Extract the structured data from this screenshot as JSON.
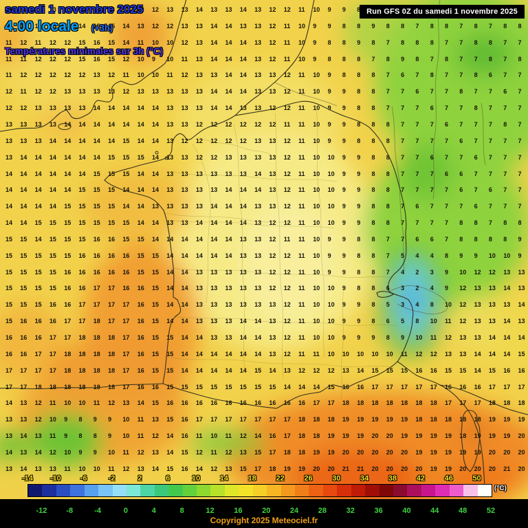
{
  "header": {
    "date_line": "samedi 1 novembre 2025",
    "time_line": "4:00 locale",
    "time_offset": "(+3h)",
    "subtitle": "Températures minimales sur 3h (°C)"
  },
  "run_box": {
    "label": "Run GFS 0Z du samedi 1 novembre 2025"
  },
  "copyright": "Copyright 2025 Meteociel.fr",
  "colorbar": {
    "unit_label": "(°C)",
    "top_labels": [
      "-14",
      "-10",
      "-6",
      "-2",
      "2",
      "6",
      "10",
      "14",
      "18",
      "22",
      "26",
      "30",
      "34",
      "38",
      "42",
      "46",
      "50"
    ],
    "bottom_labels": [
      "-12",
      "-8",
      "-4",
      "0",
      "4",
      "8",
      "12",
      "16",
      "20",
      "24",
      "28",
      "32",
      "36",
      "40",
      "44",
      "48",
      "52"
    ],
    "colors": [
      "#10186e",
      "#1c2f9c",
      "#2a4ec2",
      "#3e72dc",
      "#57a0ee",
      "#78c5f6",
      "#95dff9",
      "#7ce8d6",
      "#4ed5a6",
      "#3bc87c",
      "#43c84e",
      "#62d13b",
      "#8dd930",
      "#b7e12a",
      "#dee829",
      "#f4e229",
      "#f6cf27",
      "#f6b723",
      "#f4991d",
      "#f17f19",
      "#ed6213",
      "#e7490f",
      "#d82f0b",
      "#bf1b07",
      "#9f0f07",
      "#7f0707",
      "#8b0a2f",
      "#ad0f5c",
      "#c9158c",
      "#de2cb4",
      "#ee5ccc",
      "#f9c0e9",
      "#ffffff"
    ]
  },
  "grid": {
    "rows": 29,
    "cols": 36,
    "values": [
      "13 12 13 13 13 12 13 13 13 13 12 13 13 14 13 13 14 13 12 12 11 10 9 9 8 8 8 7 8 8 7 8 7 8 8 7",
      "12 13 12 13 12 14 15 15 14 13 12 12 13 13 14 14 13 13 12 11 10 9 9 8 8 9 8 8 7 8 8 7 8 7 8 8",
      "11 12 11 12 12 15 16 15 14 11 10 10 12 13 14 14 14 13 12 11 10 9 8 8 9 8 7 8 8 8 7 7 8 8 7 7",
      "11 11 12 12 12 15 16 15 12 10 9 10 11 13 14 14 14 13 12 11 10 9 8 8 8 7 8 9 8 7 8 7 7 8 7 8",
      "11 12 12 12 12 12 13 12 11 10 10 11 12 13 13 14 14 13 13 12 11 10 9 8 8 8 7 6 7 8 7 7 8 6 7 7",
      "12 11 12 12 13 13 13 13 12 13 13 13 13 13 14 14 14 13 13 12 11 10 9 9 8 8 7 7 6 7 7 8 7 7 6 7",
      "12 12 13 13 13 13 14 14 14 14 14 13 13 13 14 14 13 13 12 12 11 10 9 9 8 8 7 7 7 6 7 7 8 7 7 7",
      "13 13 13 13 14 14 14 14 14 14 14 13 13 12 12 12 12 12 12 11 11 10 9 9 8 8 8 7 7 7 6 7 7 7 8 7",
      "13 13 13 14 14 14 14 14 15 14 14 13 12 12 12 12 12 13 13 12 11 10 9 9 8 8 8 7 7 7 7 6 7 7 7 7",
      "13 14 14 14 14 14 14 15 15 15 14 13 13 12 12 13 13 13 13 12 11 10 10 9 9 8 8 7 7 6 7 7 6 7 7 7",
      "14 14 14 14 14 14 15 15 15 14 14 13 13 13 13 13 13 14 13 12 11 10 10 9 9 8 8 7 7 7 6 6 7 7 7 7",
      "14 14 14 14 14 15 15 15 14 14 14 13 13 13 13 14 14 14 13 12 11 10 10 9 9 8 8 7 7 7 7 6 7 6 7 7",
      "14 14 14 14 15 15 15 15 14 14 13 13 13 13 14 14 14 13 13 12 11 10 10 9 9 8 8 7 6 7 7 7 6 7 7 7",
      "14 14 15 15 15 15 15 15 15 14 14 13 13 14 14 14 14 13 12 12 11 10 10 9 9 8 8 7 7 7 7 8 8 7 8 8",
      "15 15 14 15 15 15 16 16 15 15 14 14 14 14 14 14 13 13 12 11 11 10 9 9 8 8 7 7 6 6 7 8 8 8 8 9",
      "15 15 15 15 15 16 16 16 16 15 15 14 14 14 14 14 13 13 12 12 11 10 9 9 8 8 7 5 4 4 8 9 9 10 10 9",
      "15 15 15 15 16 16 16 16 16 15 15 14 14 13 13 13 13 13 12 12 11 10 9 9 8 8 7 4 2 3 9 10 12 12 13 13",
      "15 15 15 15 16 16 17 17 16 16 15 14 14 13 13 13 13 13 12 12 11 10 10 9 8 8 6 3 2 4 9 12 13 13 14 13",
      "15 15 15 16 16 17 17 17 17 16 15 14 14 13 13 13 13 13 13 12 11 10 10 9 9 8 5 3 4 8 10 12 13 13 13 14",
      "15 16 16 16 17 17 18 17 17 16 15 14 14 13 13 13 14 14 13 12 11 10 10 9 9 8 6 5 8 10 11 12 13 13 14 13",
      "16 16 16 17 17 18 18 18 17 16 15 15 14 14 13 13 14 14 13 12 11 10 10 9 9 9 8 9 10 11 12 13 13 14 14 14",
      "16 16 17 17 18 18 18 18 17 16 15 15 14 14 14 14 14 14 13 12 11 11 10 10 10 10 10 11 12 12 13 13 14 14 14 15",
      "17 17 17 17 18 18 18 18 17 16 15 15 14 14 14 14 14 15 14 13 12 12 12 13 14 15 15 15 16 16 15 15 14 15 16 16",
      "17 17 18 18 18 18 18 18 17 16 16 15 15 15 15 15 15 15 15 14 14 14 15 16 16 17 17 17 17 17 16 16 16 17 17 17",
      "14 13 12 11 10 10 11 12 13 14 15 16 16 16 16 16 16 16 16 16 16 17 17 18 18 18 18 18 18 18 17 17 17 18 18 18",
      "13 13 12 10 9 8 9 9 10 11 13 15 16 17 17 17 17 17 17 17 18 18 18 19 19 19 19 19 18 18 18 18 18 19 19 19",
      "13 14 13 11 9 8 8 9 10 11 12 14 16 11 10 11 12 14 16 17 18 18 19 19 19 20 20 19 19 19 19 18 19 19 19 20",
      "14 13 14 12 10 9 9 10 11 12 13 14 15 12 11 12 13 15 17 18 18 19 19 20 20 20 20 20 19 19 19 19 19 20 20 20",
      "13 14 13 13 11 10 10 11 12 13 14 15 16 14 12 13 15 17 18 19 19 20 20 21 21 20 20 20 20 19 19 20 20 20 21 20"
    ]
  }
}
